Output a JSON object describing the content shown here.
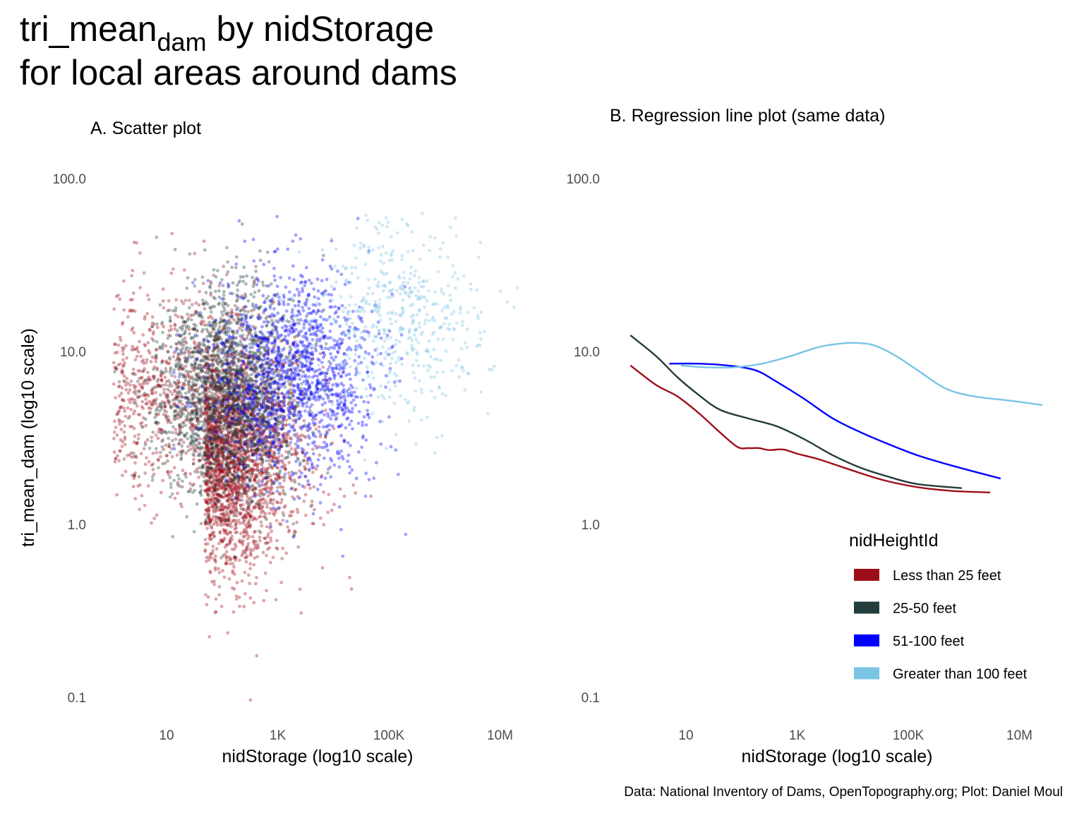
{
  "title": {
    "main": "tri_mean",
    "sub": "dam",
    "rest": " by nidStorage",
    "line2": "for local areas around dams"
  },
  "caption": "Data: National Inventory of Dams, OpenTopography.org; Plot: Daniel Moul",
  "chart_data": [
    {
      "type": "scatter",
      "title": "A. Scatter plot",
      "xlabel": "nidStorage (log10 scale)",
      "ylabel": "tri_mean_dam (log10 scale)",
      "xscale": "log10",
      "yscale": "log10",
      "xlim": [
        1,
        30000000
      ],
      "ylim": [
        0.07,
        120
      ],
      "xticks": [
        {
          "v": 10,
          "label": "10"
        },
        {
          "v": 1000,
          "label": "1K"
        },
        {
          "v": 100000,
          "label": "100K"
        },
        {
          "v": 10000000,
          "label": "10M"
        }
      ],
      "yticks": [
        {
          "v": 100,
          "label": "100.0"
        },
        {
          "v": 10,
          "label": "10.0"
        },
        {
          "v": 1,
          "label": "1.0"
        },
        {
          "v": 0.1,
          "label": "0.1"
        }
      ],
      "grid": false,
      "series": [
        {
          "name": "Less than 25 feet",
          "color": "#9E0E1A",
          "opacity": 0.35
        },
        {
          "name": "25-50 feet",
          "color": "#233D3C",
          "opacity": 0.35
        },
        {
          "name": "51-100 feet",
          "color": "#0000FF",
          "opacity": 0.35
        },
        {
          "name": "Greater than 100 feet",
          "color": "#7AC4E6",
          "opacity": 0.35
        }
      ]
    },
    {
      "type": "line",
      "title": "B. Regression line plot (same data)",
      "xlabel": "nidStorage (log10 scale)",
      "ylabel": "",
      "xscale": "log10",
      "yscale": "log10",
      "xlim": [
        1,
        30000000
      ],
      "ylim": [
        0.07,
        120
      ],
      "xticks": [
        {
          "v": 10,
          "label": "10"
        },
        {
          "v": 1000,
          "label": "1K"
        },
        {
          "v": 100000,
          "label": "100K"
        },
        {
          "v": 10000000,
          "label": "10M"
        }
      ],
      "yticks": [
        {
          "v": 100,
          "label": "100.0"
        },
        {
          "v": 10,
          "label": "10.0"
        },
        {
          "v": 1,
          "label": "1.0"
        },
        {
          "v": 0.1,
          "label": "0.1"
        }
      ],
      "grid": false,
      "legend": {
        "title": "nidHeightId",
        "position": "bottom-right"
      },
      "series": [
        {
          "name": "Less than 25 feet",
          "color": "#9E0E1A",
          "x": [
            1,
            2.9,
            7,
            17,
            41,
            85,
            131,
            203,
            315,
            565,
            1010,
            2440,
            7850,
            33900,
            146000,
            631000,
            2970000
          ],
          "y": [
            8.3,
            6.4,
            5.5,
            4.4,
            3.4,
            2.8,
            2.76,
            2.76,
            2.69,
            2.71,
            2.56,
            2.38,
            2.1,
            1.81,
            1.64,
            1.56,
            1.53
          ]
        },
        {
          "name": "25-50 feet",
          "color": "#233D3C",
          "x": [
            1,
            2.9,
            7,
            17,
            41,
            131,
            422,
            1360,
            4380,
            14100,
            45400,
            146000,
            923000
          ],
          "y": [
            12.4,
            9.4,
            7.1,
            5.6,
            4.6,
            4.1,
            3.7,
            3.1,
            2.51,
            2.12,
            1.88,
            1.71,
            1.62
          ]
        },
        {
          "name": "51-100 feet",
          "color": "#0000FF",
          "x": [
            5,
            17,
            55,
            175,
            422,
            1360,
            4380,
            14100,
            45400,
            146000,
            631000,
            4600000
          ],
          "y": [
            8.5,
            8.5,
            8.3,
            7.8,
            6.7,
            5.3,
            4.1,
            3.4,
            2.9,
            2.51,
            2.18,
            1.84
          ]
        },
        {
          "name": "Greater than 100 feet",
          "color": "#7AC4E6",
          "x": [
            8.1,
            22.7,
            73,
            235,
            757,
            2440,
            5860,
            12200,
            25300,
            60800,
            146000,
            471000,
            1520000,
            6550000,
            25900000
          ],
          "y": [
            8.3,
            8.1,
            8.1,
            8.5,
            9.4,
            10.6,
            11.1,
            11.2,
            10.8,
            9.4,
            7.8,
            6.1,
            5.5,
            5.2,
            4.9
          ]
        }
      ]
    }
  ]
}
